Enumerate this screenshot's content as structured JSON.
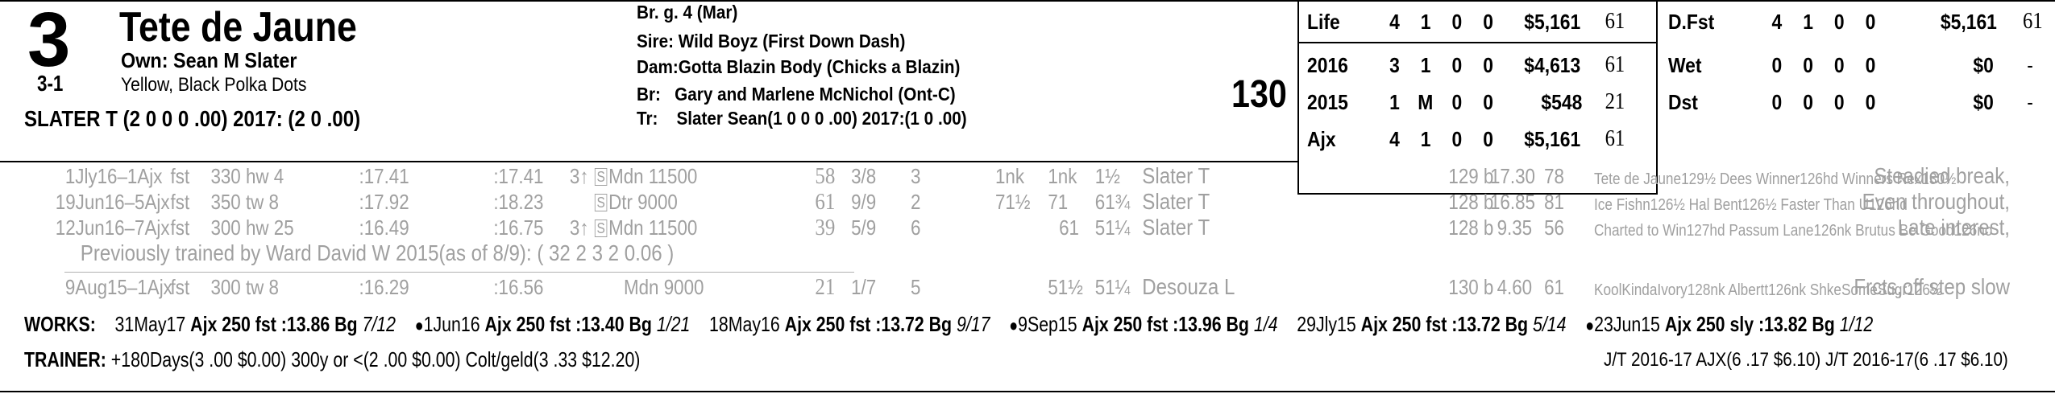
{
  "horse": {
    "program_number": "3",
    "name": "Tete de Jaune",
    "owner": "Own: Sean M Slater",
    "odds": "3-1",
    "silks": "Yellow, Black Polka Dots",
    "jockey_line": "SLATER T (2 0 0 0 .00) 2017: (2 0 .00)",
    "weight": "130"
  },
  "breeding": {
    "sex_age": "Br. g. 4 (Mar)",
    "sire": "Sire: Wild Boyz (First Down Dash)",
    "dam_label": "Dam:",
    "dam": "Gotta Blazin Body (Chicks a Blazin)",
    "breeder_label": "Br:",
    "breeder": "Gary and Marlene McNichol (Ont-C)",
    "trainer_label": "Tr:",
    "trainer": "Slater Sean(1 0 0 0 .00)  2017:(1 0 .00)"
  },
  "stats_left": [
    {
      "label": "Life",
      "starts": "4",
      "w": "1",
      "p": "0",
      "s": "0",
      "earnings": "$5,161",
      "speed": "61"
    },
    {
      "label": "2016",
      "starts": "3",
      "w": "1",
      "p": "0",
      "s": "0",
      "earnings": "$4,613",
      "speed": "61"
    },
    {
      "label": "2015",
      "starts": "1",
      "w": "M",
      "p": "0",
      "s": "0",
      "earnings": "$548",
      "speed": "21"
    },
    {
      "label": "Ajx",
      "starts": "4",
      "w": "1",
      "p": "0",
      "s": "0",
      "earnings": "$5,161",
      "speed": "61"
    }
  ],
  "stats_right": [
    {
      "label": "D.Fst",
      "starts": "4",
      "w": "1",
      "p": "0",
      "s": "0",
      "earnings": "$5,161",
      "speed": "61"
    },
    {
      "label": "Wet",
      "starts": "0",
      "w": "0",
      "p": "0",
      "s": "0",
      "earnings": "$0",
      "speed": "-"
    },
    {
      "label": "Dst",
      "starts": "0",
      "w": "0",
      "p": "0",
      "s": "0",
      "earnings": "$0",
      "speed": "-"
    }
  ],
  "past_performances": [
    {
      "date": "1Jly16–1Ajx",
      "cond": "fst",
      "dist": "330 hw 4",
      "f1": ":17.41",
      "f2": ":17.41",
      "age": "3↑",
      "s": "S",
      "race": "Mdn 11500",
      "spd": "58",
      "pp": "3/8",
      "st": "3",
      "c1": "1nk",
      "c2": "1nk",
      "fin": "1½",
      "jockey": "Slater T",
      "wt": "129 b",
      "odds": "17.30",
      "sr": "78",
      "comp": "Tete de Jaune129½ Dees Winner126hd Winners Rex130½",
      "comment": "Steadied break,"
    },
    {
      "date": "19Jun16–5Ajx",
      "cond": "fst",
      "dist": "350 tw 8",
      "f1": ":17.92",
      "f2": ":18.23",
      "age": "",
      "s": "S",
      "race": "Dtr 9000",
      "spd": "61",
      "pp": "9/9",
      "st": "2",
      "c1": "71½",
      "c2": "71",
      "fin": "61¾",
      "jockey": "Slater T",
      "wt": "128 b",
      "odds": "16.85",
      "sr": "81",
      "comp": "Ice Fishn126½ Hal Bent126½ Faster Than U126hd",
      "comment": "Even throughout,"
    },
    {
      "date": "12Jun16–7Ajx",
      "cond": "fst",
      "dist": "300 hw 25",
      "f1": ":16.49",
      "f2": ":16.75",
      "age": "3↑",
      "s": "S",
      "race": "Mdn 11500",
      "spd": "39",
      "pp": "5/9",
      "st": "6",
      "c1": "",
      "c2": "61",
      "fin": "51¼",
      "jockey": "Slater T",
      "wt": "128 b",
      "odds": "9.35",
      "sr": "56",
      "comp": "Charted to Win127hd Passum Lane126nk Brutus Be Good126no",
      "comment": "Late interest,"
    },
    {
      "date": "9Aug15–1Ajx",
      "cond": "fst",
      "dist": "300 tw 8",
      "f1": ":16.29",
      "f2": ":16.56",
      "age": "",
      "s": "",
      "race": "Mdn 9000",
      "spd": "21",
      "pp": "1/7",
      "st": "5",
      "c1": "",
      "c2": "51½",
      "fin": "51¼",
      "jockey": "Desouza L",
      "wt": "130 b",
      "odds": "4.60",
      "sr": "61",
      "comp": "KoolKindaIvory128nk Albertt126nk ShkeSomeSugr126½",
      "comment": "Frcts,off step slow"
    }
  ],
  "previously_trained": "Previously trained by Ward David W 2015(as of 8/9): ( 32 2 3 2 0.06 )",
  "works": {
    "label": "WORKS:",
    "items": [
      {
        "bullet": "",
        "date": "31May17",
        "track": "Ajx",
        "detail": "250 fst :13.86 Bg",
        "rank": "7/12"
      },
      {
        "bullet": "●",
        "date": "1Jun16",
        "track": "Ajx",
        "detail": "250 fst :13.40 Bg",
        "rank": "1/21"
      },
      {
        "bullet": "",
        "date": "18May16",
        "track": "Ajx",
        "detail": "250 fst :13.72 Bg",
        "rank": "9/17"
      },
      {
        "bullet": "●",
        "date": "9Sep15",
        "track": "Ajx",
        "detail": "250 fst :13.96 Bg",
        "rank": "1/4"
      },
      {
        "bullet": "",
        "date": "29Jly15",
        "track": "Ajx",
        "detail": "250 fst :13.72 Bg",
        "rank": "5/14"
      },
      {
        "bullet": "●",
        "date": "23Jun15",
        "track": "Ajx",
        "detail": "250 sly :13.82 Bg",
        "rank": "1/12"
      }
    ]
  },
  "trainer_stats": {
    "label": "TRAINER:",
    "text": "+180Days(3 .00 $0.00) 300y or <(2 .00 $0.00) Colt/geld(3 .33 $12.20)",
    "jt": "J/T 2016-17 AJX(6 .17 $6.10)  J/T 2016-17(6 .17 $6.10)"
  }
}
